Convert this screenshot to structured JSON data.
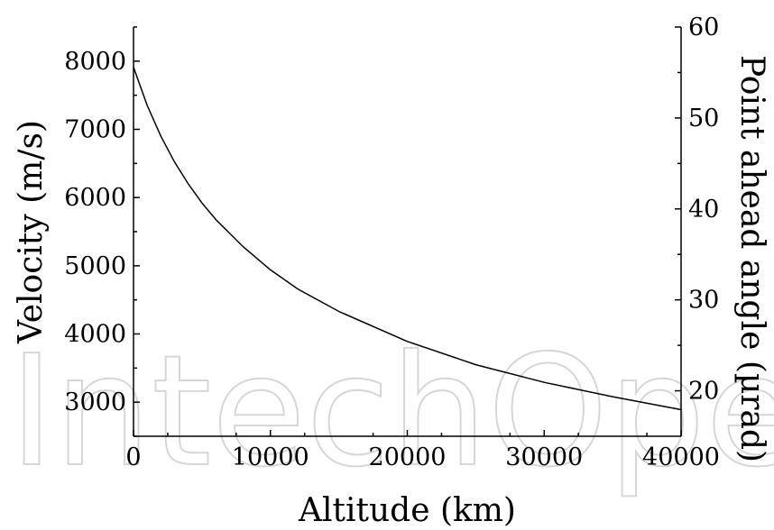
{
  "chart_data": {
    "type": "line",
    "title": "",
    "xlabel": "Altitude (km)",
    "ylabel": "Velocity (m/s)",
    "y2label": "Point ahead angle (µrad)",
    "xlim": [
      0,
      40000
    ],
    "ylim": [
      2500,
      8500
    ],
    "y2lim": [
      15,
      60
    ],
    "xticks": [
      0,
      10000,
      20000,
      30000,
      40000
    ],
    "yticks": [
      3000,
      4000,
      5000,
      6000,
      7000,
      8000
    ],
    "y2ticks": [
      20,
      30,
      40,
      50,
      60
    ],
    "grid": false,
    "series": [
      {
        "x": [
          0,
          1000,
          2000,
          3000,
          4000,
          5000,
          6000,
          8000,
          10000,
          12000,
          15000,
          20000,
          25000,
          30000,
          35000,
          40000
        ],
        "y": [
          7910,
          7350,
          6900,
          6520,
          6200,
          5920,
          5680,
          5280,
          4940,
          4660,
          4330,
          3890,
          3550,
          3290,
          3080,
          2890
        ],
        "color": "#000000"
      }
    ]
  },
  "watermark": {
    "text": "IntechOpen"
  }
}
